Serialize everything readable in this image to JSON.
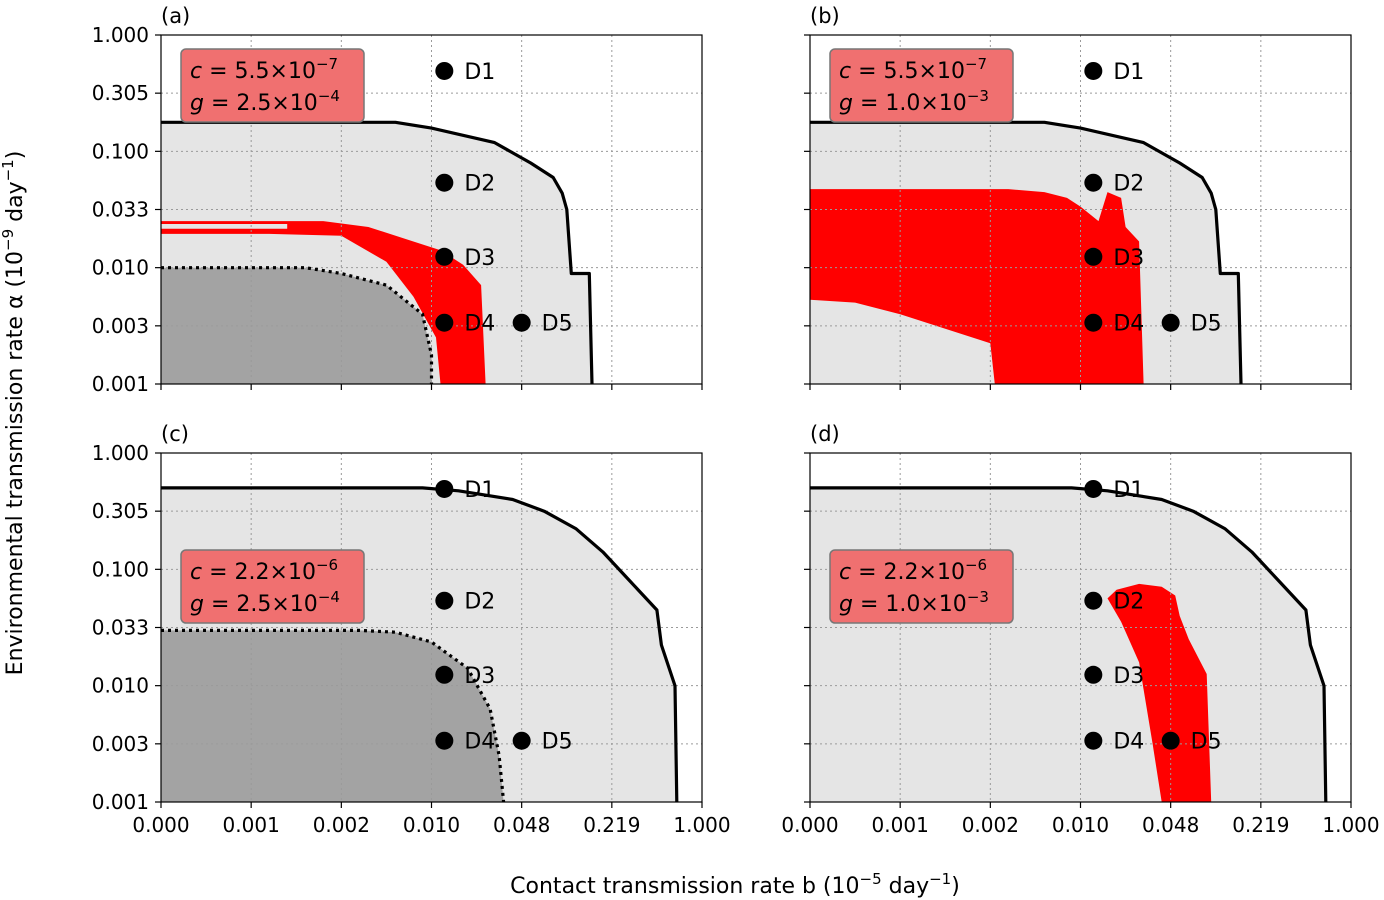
{
  "chart_data": {
    "type": "scatter",
    "xlabel": "Contact transmission rate b (10⁻⁵ day⁻¹)",
    "ylabel": "Environmental transmission rate α (10⁻⁹ day⁻¹)",
    "x_ticks": [
      "0.000",
      "0.001",
      "0.002",
      "0.010",
      "0.048",
      "0.219",
      "1.000"
    ],
    "y_ticks": [
      "1.000",
      "0.305",
      "0.100",
      "0.033",
      "0.010",
      "0.003",
      "0.001"
    ],
    "grid": true,
    "colors": {
      "light_region": "#e5e5e5",
      "dark_region": "#a3a3a3",
      "red_region": "#ff0000",
      "param_box": "#f07070",
      "boundary": "#000000"
    },
    "panels": [
      {
        "label": "(a)",
        "box": {
          "c_name": "c",
          "c_mant": "5.5",
          "c_exp": "−7",
          "g_name": "g",
          "g_mant": "2.5",
          "g_exp": "−4",
          "position": "top-left"
        },
        "outer_boundary": [
          [
            0,
            1.5
          ],
          [
            2.6,
            1.5
          ],
          [
            3.0,
            1.4
          ],
          [
            3.7,
            1.15
          ],
          [
            4.1,
            0.8
          ],
          [
            4.35,
            0.55
          ],
          [
            4.45,
            0.28
          ],
          [
            4.5,
            0
          ],
          [
            4.55,
            -1.1
          ],
          [
            4.75,
            -1.1
          ],
          [
            4.78,
            -3
          ]
        ],
        "inner_boundary": [
          [
            0,
            -1.0
          ],
          [
            1.6,
            -1.0
          ],
          [
            2.0,
            -1.1
          ],
          [
            2.5,
            -1.3
          ],
          [
            2.9,
            -1.8
          ],
          [
            3.0,
            -2.5
          ],
          [
            3.0,
            -3
          ]
        ],
        "red_region": [
          [
            0,
            -0.2
          ],
          [
            1.8,
            -0.2
          ],
          [
            2.3,
            -0.3
          ],
          [
            2.7,
            -0.5
          ],
          [
            3.1,
            -0.7
          ],
          [
            3.35,
            -0.95
          ],
          [
            3.55,
            -1.3
          ],
          [
            3.6,
            -3
          ],
          [
            3.1,
            -3
          ],
          [
            3.05,
            -2.2
          ],
          [
            2.8,
            -1.5
          ],
          [
            2.5,
            -0.9
          ],
          [
            2.0,
            -0.45
          ],
          [
            1.2,
            -0.42
          ],
          [
            0,
            -0.42
          ]
        ],
        "red_gap": [
          [
            0,
            -0.25
          ],
          [
            1.4,
            -0.25
          ],
          [
            1.4,
            -0.33
          ],
          [
            0,
            -0.33
          ]
        ],
        "points": [
          {
            "name": "D1",
            "b": 0.0125,
            "alpha": 0.48
          },
          {
            "name": "D2",
            "b": 0.0125,
            "alpha": 0.055
          },
          {
            "name": "D3",
            "b": 0.0125,
            "alpha": 0.0125
          },
          {
            "name": "D4",
            "b": 0.0125,
            "alpha": 0.0032
          },
          {
            "name": "D5",
            "b": 0.048,
            "alpha": 0.0032
          }
        ]
      },
      {
        "label": "(b)",
        "box": {
          "c_name": "c",
          "c_mant": "5.5",
          "c_exp": "−7",
          "g_name": "g",
          "g_mant": "1.0",
          "g_exp": "−3",
          "position": "top-left"
        },
        "outer_boundary": [
          [
            0,
            1.5
          ],
          [
            2.6,
            1.5
          ],
          [
            3.0,
            1.4
          ],
          [
            3.7,
            1.15
          ],
          [
            4.1,
            0.8
          ],
          [
            4.35,
            0.55
          ],
          [
            4.45,
            0.28
          ],
          [
            4.5,
            0
          ],
          [
            4.55,
            -1.1
          ],
          [
            4.75,
            -1.1
          ],
          [
            4.78,
            -3
          ]
        ],
        "inner_boundary": [],
        "red_region": [
          [
            0,
            0.35
          ],
          [
            2.2,
            0.35
          ],
          [
            2.6,
            0.3
          ],
          [
            2.85,
            0.2
          ],
          [
            3.0,
            0.05
          ],
          [
            3.2,
            -0.2
          ],
          [
            3.3,
            0.3
          ],
          [
            3.45,
            0.2
          ],
          [
            3.5,
            -0.3
          ],
          [
            3.65,
            -0.55
          ],
          [
            3.7,
            -3
          ],
          [
            2.05,
            -3
          ],
          [
            2.0,
            -2.3
          ],
          [
            1.0,
            -1.8
          ],
          [
            0.5,
            -1.6
          ],
          [
            0,
            -1.55
          ]
        ],
        "red_gap": [],
        "points": [
          {
            "name": "D1",
            "b": 0.0125,
            "alpha": 0.48
          },
          {
            "name": "D2",
            "b": 0.0125,
            "alpha": 0.055
          },
          {
            "name": "D3",
            "b": 0.0125,
            "alpha": 0.0125
          },
          {
            "name": "D4",
            "b": 0.0125,
            "alpha": 0.0032
          },
          {
            "name": "D5",
            "b": 0.048,
            "alpha": 0.0032
          }
        ]
      },
      {
        "label": "(c)",
        "box": {
          "c_name": "c",
          "c_mant": "2.2",
          "c_exp": "−6",
          "g_name": "g",
          "g_mant": "2.5",
          "g_exp": "−4",
          "position": "middle-left"
        },
        "outer_boundary": [
          [
            0,
            2.4
          ],
          [
            2.9,
            2.4
          ],
          [
            3.3,
            2.35
          ],
          [
            3.9,
            2.2
          ],
          [
            4.25,
            2.0
          ],
          [
            4.6,
            1.7
          ],
          [
            4.9,
            1.3
          ],
          [
            5.2,
            0.8
          ],
          [
            5.5,
            0.3
          ],
          [
            5.55,
            -0.3
          ],
          [
            5.7,
            -1.0
          ],
          [
            5.72,
            -3
          ]
        ],
        "inner_boundary": [
          [
            0,
            -0.05
          ],
          [
            2.2,
            -0.05
          ],
          [
            2.6,
            -0.08
          ],
          [
            3.0,
            -0.25
          ],
          [
            3.4,
            -0.7
          ],
          [
            3.65,
            -1.4
          ],
          [
            3.75,
            -2.2
          ],
          [
            3.8,
            -3
          ]
        ],
        "red_region": [],
        "red_gap": [],
        "points": [
          {
            "name": "D1",
            "b": 0.0125,
            "alpha": 0.48
          },
          {
            "name": "D2",
            "b": 0.0125,
            "alpha": 0.055
          },
          {
            "name": "D3",
            "b": 0.0125,
            "alpha": 0.0125
          },
          {
            "name": "D4",
            "b": 0.0125,
            "alpha": 0.0032
          },
          {
            "name": "D5",
            "b": 0.048,
            "alpha": 0.0032
          }
        ]
      },
      {
        "label": "(d)",
        "box": {
          "c_name": "c",
          "c_mant": "2.2",
          "c_exp": "−6",
          "g_name": "g",
          "g_mant": "1.0",
          "g_exp": "−3",
          "position": "middle-left"
        },
        "outer_boundary": [
          [
            0,
            2.4
          ],
          [
            2.9,
            2.4
          ],
          [
            3.3,
            2.35
          ],
          [
            3.9,
            2.2
          ],
          [
            4.25,
            2.0
          ],
          [
            4.6,
            1.7
          ],
          [
            4.9,
            1.3
          ],
          [
            5.2,
            0.8
          ],
          [
            5.5,
            0.3
          ],
          [
            5.55,
            -0.3
          ],
          [
            5.7,
            -1.0
          ],
          [
            5.72,
            -3
          ]
        ],
        "inner_boundary": [],
        "red_region": [
          [
            3.4,
            0.65
          ],
          [
            3.65,
            0.75
          ],
          [
            3.9,
            0.7
          ],
          [
            4.05,
            0.55
          ],
          [
            4.1,
            0.2
          ],
          [
            4.2,
            -0.2
          ],
          [
            4.4,
            -0.8
          ],
          [
            4.45,
            -3
          ],
          [
            3.9,
            -3
          ],
          [
            3.8,
            -2.0
          ],
          [
            3.65,
            -0.6
          ],
          [
            3.45,
            0.1
          ],
          [
            3.3,
            0.5
          ]
        ],
        "red_gap": [],
        "points": [
          {
            "name": "D1",
            "b": 0.0125,
            "alpha": 0.48
          },
          {
            "name": "D2",
            "b": 0.0125,
            "alpha": 0.055
          },
          {
            "name": "D3",
            "b": 0.0125,
            "alpha": 0.0125
          },
          {
            "name": "D4",
            "b": 0.0125,
            "alpha": 0.0032
          },
          {
            "name": "D5",
            "b": 0.048,
            "alpha": 0.0032
          }
        ]
      }
    ]
  }
}
